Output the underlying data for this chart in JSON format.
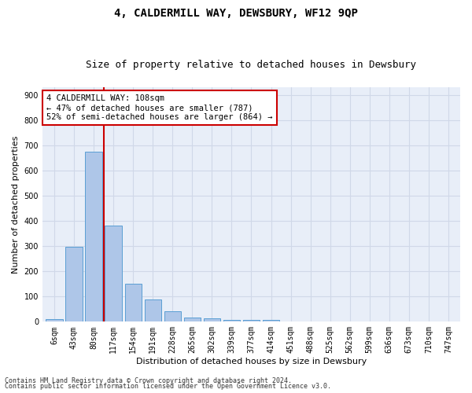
{
  "title": "4, CALDERMILL WAY, DEWSBURY, WF12 9QP",
  "subtitle": "Size of property relative to detached houses in Dewsbury",
  "xlabel": "Distribution of detached houses by size in Dewsbury",
  "ylabel": "Number of detached properties",
  "bar_labels": [
    "6sqm",
    "43sqm",
    "80sqm",
    "117sqm",
    "154sqm",
    "191sqm",
    "228sqm",
    "265sqm",
    "302sqm",
    "339sqm",
    "377sqm",
    "414sqm",
    "451sqm",
    "488sqm",
    "525sqm",
    "562sqm",
    "599sqm",
    "636sqm",
    "673sqm",
    "710sqm",
    "747sqm"
  ],
  "bar_values": [
    10,
    298,
    675,
    383,
    150,
    90,
    42,
    17,
    13,
    8,
    7,
    6,
    0,
    0,
    0,
    0,
    0,
    0,
    0,
    0,
    0
  ],
  "bar_color": "#aec6e8",
  "bar_edge_color": "#5a9fd4",
  "vline_color": "#cc0000",
  "annotation_text": "4 CALDERMILL WAY: 108sqm\n← 47% of detached houses are smaller (787)\n52% of semi-detached houses are larger (864) →",
  "annotation_box_color": "#ffffff",
  "annotation_box_edge": "#cc0000",
  "ylim": [
    0,
    930
  ],
  "yticks": [
    0,
    100,
    200,
    300,
    400,
    500,
    600,
    700,
    800,
    900
  ],
  "grid_color": "#d0d8e8",
  "background_color": "#e8eef8",
  "footer_line1": "Contains HM Land Registry data © Crown copyright and database right 2024.",
  "footer_line2": "Contains public sector information licensed under the Open Government Licence v3.0.",
  "title_fontsize": 10,
  "subtitle_fontsize": 9,
  "axis_label_fontsize": 8,
  "tick_fontsize": 7,
  "annotation_fontsize": 7.5,
  "footer_fontsize": 6
}
